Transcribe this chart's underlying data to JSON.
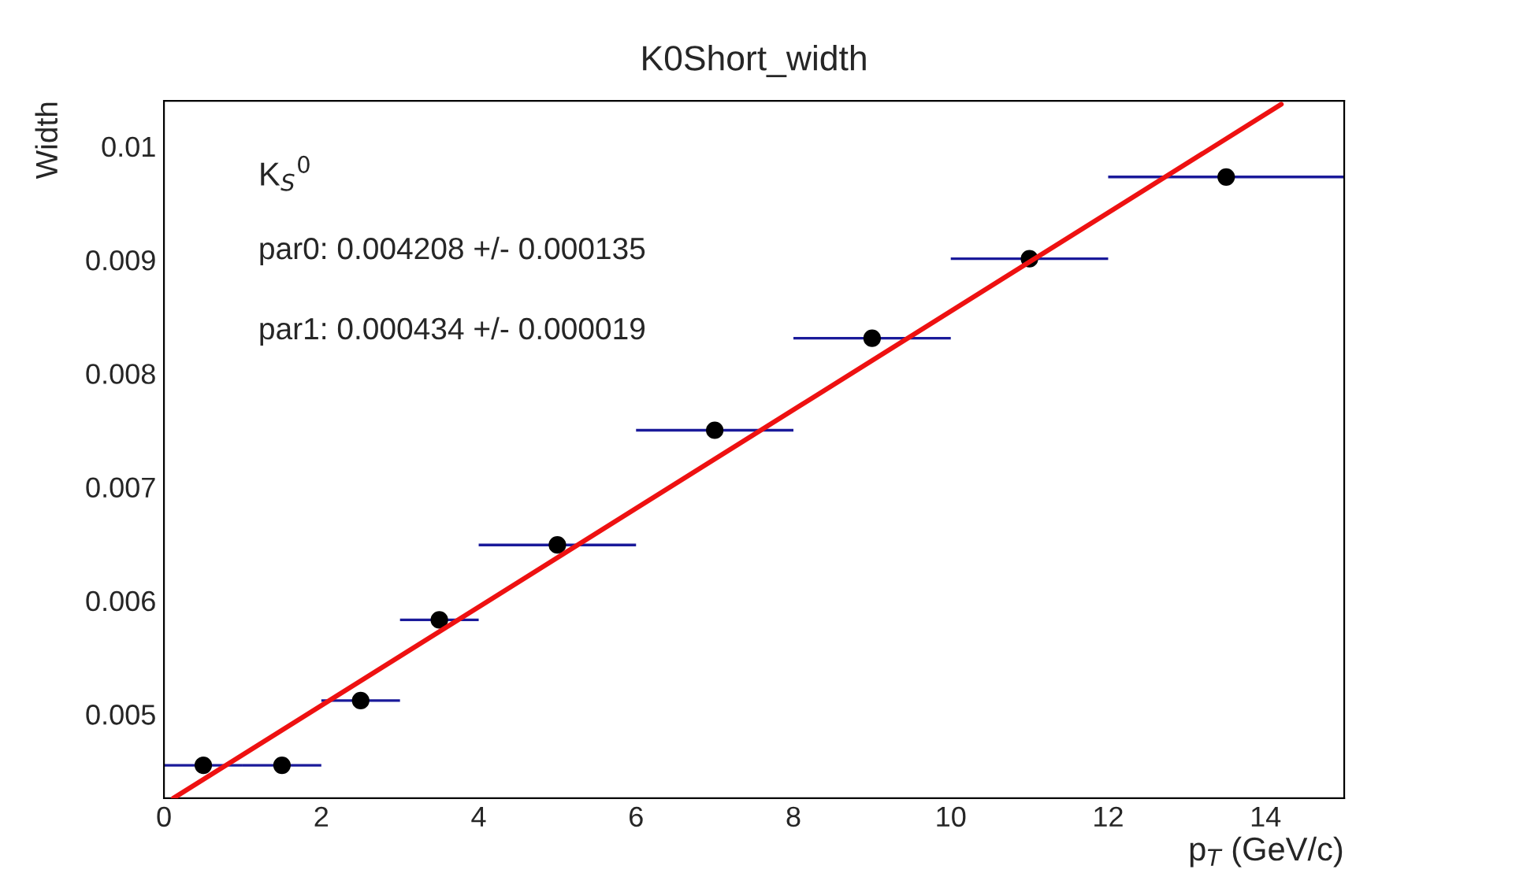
{
  "chart_data": {
    "type": "scatter",
    "title": "K0Short_width",
    "xlabel": "p$_{T}$ (GeV/c)",
    "ylabel": "Width",
    "annotations": [
      "K$_{S}$$^{0}$",
      "par0: 0.004208 +/- 0.000135",
      "par1: 0.000434 +/- 0.000019"
    ],
    "xlim": [
      0,
      15
    ],
    "xticks": [
      0,
      2,
      4,
      6,
      8,
      10,
      12,
      14
    ],
    "ylim": [
      0.00426,
      0.0104
    ],
    "yticks": [
      0.005,
      0.006,
      0.007,
      0.008,
      0.009,
      0.01
    ],
    "grid": false,
    "legend": false,
    "series": [
      {
        "color": "#000000",
        "marker": "circle",
        "x": [
          0.5,
          1.5,
          2.5,
          3.5,
          5,
          7,
          9,
          11,
          13.5
        ],
        "values": [
          0.00455,
          0.00455,
          0.00512,
          0.00583,
          0.00649,
          0.0075,
          0.00831,
          0.00901,
          0.00973
        ],
        "xerrors": [
          0.5,
          0.5,
          0.5,
          0.5,
          1,
          1,
          1,
          1,
          1.5
        ]
      },
      {
        "type": "line",
        "color": "#ee1111",
        "x": [
          0.12,
          14.2
        ],
        "values": [
          0.00426,
          0.01037
        ]
      }
    ]
  }
}
